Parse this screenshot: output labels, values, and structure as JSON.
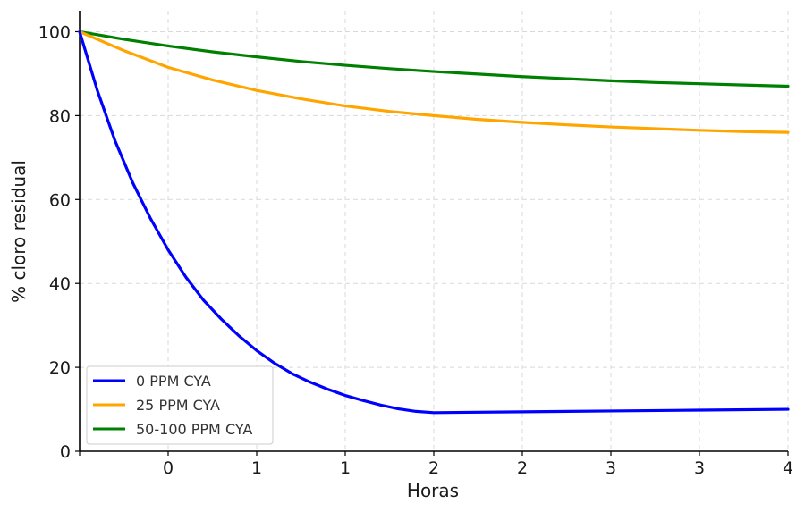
{
  "chart_data": {
    "type": "line",
    "title": "",
    "xlabel": "Horas",
    "ylabel": "% cloro residual",
    "xlim": [
      0,
      4
    ],
    "ylim": [
      0,
      105
    ],
    "grid": true,
    "legend_position": "bottom-left",
    "x_ticks": [
      {
        "value": 0,
        "label": ""
      },
      {
        "value": 0.5,
        "label": "0"
      },
      {
        "value": 1.0,
        "label": "1"
      },
      {
        "value": 1.5,
        "label": "1"
      },
      {
        "value": 2.0,
        "label": "2"
      },
      {
        "value": 2.5,
        "label": "2"
      },
      {
        "value": 3.0,
        "label": "3"
      },
      {
        "value": 3.5,
        "label": "3"
      },
      {
        "value": 4.0,
        "label": "4"
      }
    ],
    "y_ticks": [
      {
        "value": 0,
        "label": "0"
      },
      {
        "value": 20,
        "label": "20"
      },
      {
        "value": 40,
        "label": "40"
      },
      {
        "value": 60,
        "label": "60"
      },
      {
        "value": 80,
        "label": "80"
      },
      {
        "value": 100,
        "label": "100"
      }
    ],
    "series": [
      {
        "name": "0 PPM CYA",
        "color": "#0000ff",
        "x": [
          0,
          0.1,
          0.2,
          0.3,
          0.4,
          0.5,
          0.6,
          0.7,
          0.8,
          0.9,
          1.0,
          1.1,
          1.2,
          1.3,
          1.4,
          1.5,
          1.6,
          1.7,
          1.8,
          1.9,
          2.0,
          2.5,
          3.0,
          3.5,
          4.0
        ],
        "y": [
          100,
          86,
          74,
          64,
          55.5,
          48,
          41.5,
          36,
          31.5,
          27.5,
          24,
          21,
          18.5,
          16.5,
          14.8,
          13.3,
          12.1,
          11,
          10.1,
          9.5,
          9.2,
          9.4,
          9.6,
          9.8,
          10
        ]
      },
      {
        "name": "25 PPM CYA",
        "color": "#ffa500",
        "x": [
          0,
          0.25,
          0.5,
          0.75,
          1.0,
          1.25,
          1.5,
          1.75,
          2.0,
          2.25,
          2.5,
          2.75,
          3.0,
          3.25,
          3.5,
          3.75,
          4.0
        ],
        "y": [
          100,
          95.5,
          91.5,
          88.5,
          86,
          84,
          82.3,
          81,
          80,
          79.1,
          78.4,
          77.8,
          77.3,
          76.9,
          76.5,
          76.2,
          76
        ]
      },
      {
        "name": "50-100 PPM CYA",
        "color": "#008000",
        "x": [
          0,
          0.25,
          0.5,
          0.75,
          1.0,
          1.25,
          1.5,
          1.75,
          2.0,
          2.25,
          2.5,
          2.75,
          3.0,
          3.25,
          3.5,
          3.75,
          4.0
        ],
        "y": [
          100,
          98.2,
          96.6,
          95.2,
          94,
          92.9,
          92,
          91.2,
          90.5,
          89.9,
          89.3,
          88.8,
          88.3,
          87.9,
          87.6,
          87.3,
          87
        ]
      }
    ]
  }
}
